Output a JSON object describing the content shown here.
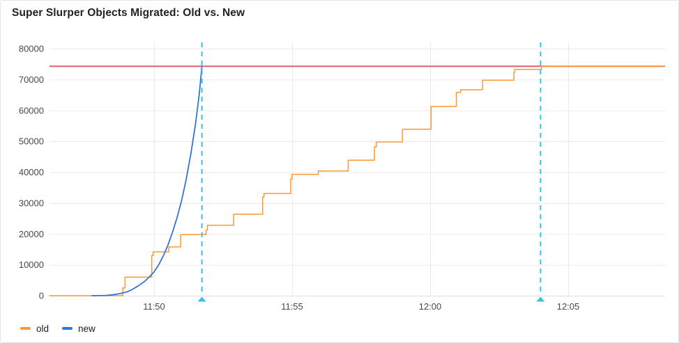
{
  "panel": {
    "title": "Super Slurper Objects Migrated: Old vs. New"
  },
  "legend": {
    "items": [
      {
        "label": "old",
        "color": "#FF9830"
      },
      {
        "label": "new",
        "color": "#3274D9"
      }
    ]
  },
  "chart_data": {
    "type": "line",
    "title": "Super Slurper Objects Migrated: Old vs. New",
    "xlabel": "",
    "ylabel": "",
    "grid": true,
    "legend_position": "bottom-left",
    "x_axis": {
      "range": [
        "11:46:13",
        "12:08:29"
      ],
      "ticks": [
        "11:50",
        "11:55",
        "12:00",
        "12:05"
      ]
    },
    "y_axis": {
      "range": [
        0,
        80000
      ],
      "ticks": [
        0,
        10000,
        20000,
        30000,
        40000,
        50000,
        60000,
        70000,
        80000
      ]
    },
    "threshold": {
      "value": 74300,
      "color": "#e0616d"
    },
    "annotations": [
      {
        "time": "11:51:44",
        "color": "#33c2e8"
      },
      {
        "time": "12:04:00",
        "color": "#33c2e8"
      }
    ],
    "series": [
      {
        "name": "old",
        "color": "#FF9830",
        "width": 1.5,
        "interpolation": "step-after",
        "points": [
          [
            "11:46:13",
            0
          ],
          [
            "11:48:50",
            0
          ],
          [
            "11:48:52",
            2500
          ],
          [
            "11:48:57",
            6000
          ],
          [
            "11:49:52",
            6000
          ],
          [
            "11:49:55",
            13000
          ],
          [
            "11:49:58",
            14200
          ],
          [
            "11:50:30",
            14200
          ],
          [
            "11:50:32",
            15800
          ],
          [
            "11:50:55",
            15800
          ],
          [
            "11:50:58",
            19800
          ],
          [
            "11:51:50",
            19800
          ],
          [
            "11:51:53",
            21300
          ],
          [
            "11:51:56",
            22800
          ],
          [
            "11:52:50",
            22800
          ],
          [
            "11:52:53",
            26400
          ],
          [
            "11:53:54",
            26400
          ],
          [
            "11:53:56",
            32000
          ],
          [
            "11:53:59",
            33100
          ],
          [
            "11:54:55",
            33100
          ],
          [
            "11:54:57",
            37800
          ],
          [
            "11:55:00",
            39300
          ],
          [
            "11:55:55",
            39300
          ],
          [
            "11:55:57",
            40400
          ],
          [
            "11:57:00",
            40400
          ],
          [
            "11:57:02",
            43900
          ],
          [
            "11:57:57",
            43900
          ],
          [
            "11:57:59",
            48200
          ],
          [
            "11:58:03",
            49800
          ],
          [
            "11:58:57",
            49800
          ],
          [
            "11:59:00",
            53900
          ],
          [
            "12:00:00",
            53900
          ],
          [
            "12:00:02",
            61300
          ],
          [
            "12:00:55",
            61300
          ],
          [
            "12:00:57",
            65800
          ],
          [
            "12:01:06",
            66700
          ],
          [
            "12:01:52",
            66700
          ],
          [
            "12:01:54",
            69800
          ],
          [
            "12:03:00",
            69800
          ],
          [
            "12:03:02",
            72300
          ],
          [
            "12:03:04",
            73300
          ],
          [
            "12:04:00",
            73300
          ],
          [
            "12:04:02",
            74300
          ],
          [
            "12:08:29",
            74300
          ]
        ]
      },
      {
        "name": "new",
        "color": "#3274D9",
        "width": 1.8,
        "interpolation": "linear",
        "points": [
          [
            "11:47:45",
            0
          ],
          [
            "11:48:15",
            100
          ],
          [
            "11:48:30",
            300
          ],
          [
            "11:48:45",
            650
          ],
          [
            "11:49:00",
            1200
          ],
          [
            "11:49:10",
            1800
          ],
          [
            "11:49:25",
            3100
          ],
          [
            "11:49:40",
            4700
          ],
          [
            "11:49:50",
            6100
          ],
          [
            "11:50:00",
            7700
          ],
          [
            "11:50:10",
            10000
          ],
          [
            "11:50:20",
            12900
          ],
          [
            "11:50:30",
            16300
          ],
          [
            "11:50:40",
            20500
          ],
          [
            "11:50:50",
            25300
          ],
          [
            "11:51:00",
            30900
          ],
          [
            "11:51:10",
            37800
          ],
          [
            "11:51:20",
            46000
          ],
          [
            "11:51:30",
            55500
          ],
          [
            "11:51:38",
            65000
          ],
          [
            "11:51:44",
            74300
          ]
        ]
      }
    ],
    "colors": {
      "gridline": "#e9eaec",
      "axis_line": "#dfe1e4",
      "tick_text": "#45494f"
    }
  }
}
